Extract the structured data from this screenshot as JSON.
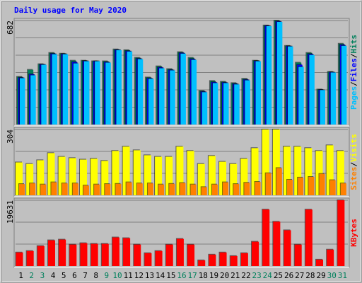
{
  "chart_data": [
    {
      "type": "bar",
      "title": "Daily usage for May 2020",
      "separator": "/",
      "ylim": [
        0,
        682
      ],
      "yticks": [
        682
      ],
      "series": [
        {
          "name": "Pages",
          "color": "#00c0ff",
          "values": [
            304,
            323,
            392,
            461,
            461,
            401,
            415,
            415,
            406,
            488,
            479,
            429,
            300,
            369,
            355,
            465,
            424,
            212,
            272,
            272,
            263,
            290,
            415,
            645,
            673,
            512,
            378,
            456,
            226,
            341,
            516
          ]
        },
        {
          "name": "Files",
          "color": "#0000ff",
          "values": [
            308,
            330,
            394,
            465,
            463,
            410,
            417,
            415,
            410,
            490,
            483,
            433,
            304,
            375,
            359,
            470,
            430,
            216,
            278,
            276,
            267,
            295,
            417,
            648,
            677,
            514,
            392,
            463,
            228,
            343,
            523
          ]
        },
        {
          "name": "Hits",
          "color": "#00805c",
          "values": [
            313,
            359,
            396,
            470,
            465,
            419,
            419,
            415,
            415,
            493,
            488,
            438,
            309,
            382,
            364,
            475,
            438,
            221,
            286,
            281,
            272,
            300,
            419,
            650,
            682,
            516,
            406,
            470,
            230,
            346,
            530
          ]
        }
      ]
    },
    {
      "type": "bar",
      "separator": "/",
      "ylim": [
        0,
        304
      ],
      "yticks": [
        304
      ],
      "series": [
        {
          "name": "Sites",
          "color": "#ff8000",
          "values": [
            52,
            55,
            50,
            60,
            55,
            55,
            45,
            50,
            52,
            53,
            60,
            55,
            55,
            50,
            53,
            57,
            50,
            38,
            50,
            60,
            52,
            58,
            62,
            102,
            126,
            72,
            82,
            85,
            99,
            70,
            55
          ]
        },
        {
          "name": "Visits",
          "color": "#ffff00",
          "values": [
            152,
            145,
            162,
            195,
            178,
            172,
            165,
            169,
            159,
            205,
            225,
            208,
            185,
            178,
            178,
            225,
            205,
            145,
            182,
            155,
            145,
            169,
            218,
            304,
            304,
            225,
            225,
            218,
            205,
            231,
            205
          ]
        }
      ]
    },
    {
      "type": "bar",
      "ylim": [
        0,
        19631
      ],
      "yticks": [
        19631
      ],
      "categories": [
        "1",
        "2",
        "3",
        "4",
        "5",
        "6",
        "7",
        "8",
        "9",
        "10",
        "11",
        "12",
        "13",
        "14",
        "15",
        "16",
        "17",
        "18",
        "19",
        "20",
        "21",
        "22",
        "23",
        "24",
        "25",
        "26",
        "27",
        "28",
        "29",
        "30",
        "31"
      ],
      "category_colors": [
        "#000000",
        "#00805c",
        "#00805c",
        "#000000",
        "#000000",
        "#000000",
        "#000000",
        "#000000",
        "#00805c",
        "#00805c",
        "#000000",
        "#000000",
        "#000000",
        "#000000",
        "#000000",
        "#00805c",
        "#00805c",
        "#000000",
        "#000000",
        "#000000",
        "#000000",
        "#000000",
        "#00805c",
        "#00805c",
        "#000000",
        "#000000",
        "#000000",
        "#000000",
        "#000000",
        "#00805c",
        "#00805c"
      ],
      "series": [
        {
          "name": "KBytes",
          "color": "#ff0000",
          "values": [
            4054,
            4481,
            5975,
            7682,
            7895,
            6401,
            6828,
            6615,
            6615,
            8535,
            8322,
            6401,
            3841,
            4481,
            6401,
            8108,
            6401,
            1707,
            3414,
            4054,
            2987,
            3841,
            7255,
            16857,
            13230,
            10669,
            6401,
            16857,
            1920,
            4908,
            19631
          ]
        }
      ]
    }
  ]
}
